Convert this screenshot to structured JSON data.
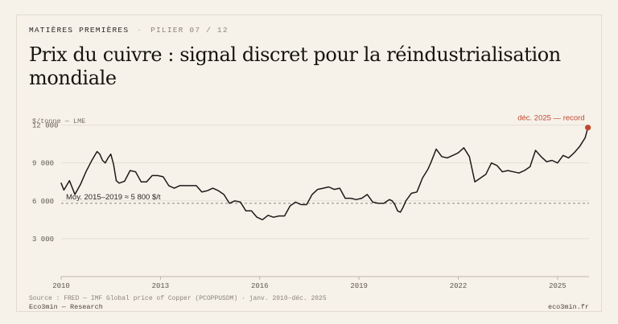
{
  "header": {
    "kicker": "MATIÈRES PREMIÈRES",
    "separator": "·",
    "pillar": "PILIER 07 / 12",
    "title": "Prix du cuivre : signal discret pour la réindustrialisation mondiale"
  },
  "footer": {
    "source": "Source : FRED — IMF Global price of Copper (PCOPPUSDM) · janv. 2010–déc. 2025",
    "brand": "Eco3min — Research",
    "site": "eco3min.fr"
  },
  "colors": {
    "line": "#1c1b19",
    "accent": "#c0482f",
    "grid": "#e4dfd4",
    "reference": "#8c8578"
  },
  "chart_data": {
    "type": "line",
    "ylabel": "$/tonne — LME",
    "ylim": [
      0,
      12800
    ],
    "yticks": [
      3000,
      6000,
      9000,
      12000
    ],
    "ytick_labels": [
      "3 000",
      "6 000",
      "9 000",
      "12 000"
    ],
    "xlim": [
      2010,
      2025.95
    ],
    "xticks": [
      2010,
      2013,
      2016,
      2019,
      2022,
      2025
    ],
    "xtick_labels": [
      "2010",
      "2013",
      "2016",
      "2019",
      "2022",
      "2025"
    ],
    "grid": true,
    "reference_line": {
      "value": 5800,
      "label": "Moy. 2015–2019 ≈ 5 800 $/t"
    },
    "highlight": {
      "x": "2025-12",
      "value": 11800,
      "label": "déc. 2025 — record"
    },
    "series": [
      {
        "x": [
          "2010-01",
          "2010-02",
          "2010-04",
          "2010-06",
          "2010-08",
          "2010-10",
          "2010-12",
          "2011-02",
          "2011-03",
          "2011-04",
          "2011-05",
          "2011-06",
          "2011-07",
          "2011-08",
          "2011-09",
          "2011-10",
          "2011-12",
          "2012-02",
          "2012-04",
          "2012-06",
          "2012-08",
          "2012-10",
          "2012-12",
          "2013-02",
          "2013-04",
          "2013-06",
          "2013-08",
          "2013-10",
          "2013-12",
          "2014-02",
          "2014-04",
          "2014-06",
          "2014-08",
          "2014-10",
          "2014-12",
          "2015-02",
          "2015-04",
          "2015-06",
          "2015-08",
          "2015-10",
          "2015-12",
          "2016-02",
          "2016-04",
          "2016-06",
          "2016-08",
          "2016-10",
          "2016-12",
          "2017-02",
          "2017-04",
          "2017-06",
          "2017-08",
          "2017-10",
          "2017-12",
          "2018-02",
          "2018-04",
          "2018-06",
          "2018-08",
          "2018-10",
          "2018-12",
          "2019-02",
          "2019-04",
          "2019-06",
          "2019-08",
          "2019-10",
          "2019-12",
          "2020-01",
          "2020-02",
          "2020-03",
          "2020-04",
          "2020-05",
          "2020-06",
          "2020-08",
          "2020-10",
          "2020-12",
          "2021-02",
          "2021-03",
          "2021-05",
          "2021-07",
          "2021-09",
          "2021-11",
          "2022-01",
          "2022-03",
          "2022-05",
          "2022-06",
          "2022-07",
          "2022-09",
          "2022-11",
          "2023-01",
          "2023-03",
          "2023-05",
          "2023-07",
          "2023-09",
          "2023-11",
          "2024-01",
          "2024-03",
          "2024-05",
          "2024-07",
          "2024-09",
          "2024-11",
          "2025-01",
          "2025-03",
          "2025-05",
          "2025-07",
          "2025-09",
          "2025-11",
          "2025-12"
        ],
        "values": [
          7400,
          6850,
          7600,
          6500,
          7300,
          8300,
          9150,
          9900,
          9700,
          9200,
          9000,
          9400,
          9700,
          8900,
          7600,
          7400,
          7550,
          8400,
          8300,
          7500,
          7500,
          8000,
          8000,
          7900,
          7200,
          7000,
          7200,
          7200,
          7200,
          7200,
          6700,
          6800,
          7000,
          6800,
          6500,
          5800,
          6000,
          5900,
          5200,
          5200,
          4700,
          4500,
          4850,
          4700,
          4800,
          4800,
          5600,
          5900,
          5700,
          5700,
          6500,
          6900,
          7000,
          7100,
          6900,
          7000,
          6200,
          6200,
          6100,
          6200,
          6500,
          5900,
          5800,
          5800,
          6100,
          6000,
          5700,
          5200,
          5100,
          5500,
          6000,
          6600,
          6700,
          7800,
          8500,
          9000,
          10100,
          9500,
          9400,
          9600,
          9800,
          10200,
          9500,
          8500,
          7500,
          7800,
          8100,
          9000,
          8800,
          8300,
          8400,
          8300,
          8200,
          8400,
          8700,
          10000,
          9500,
          9100,
          9200,
          9000,
          9600,
          9400,
          9800,
          10300,
          11000,
          11800
        ]
      }
    ]
  }
}
